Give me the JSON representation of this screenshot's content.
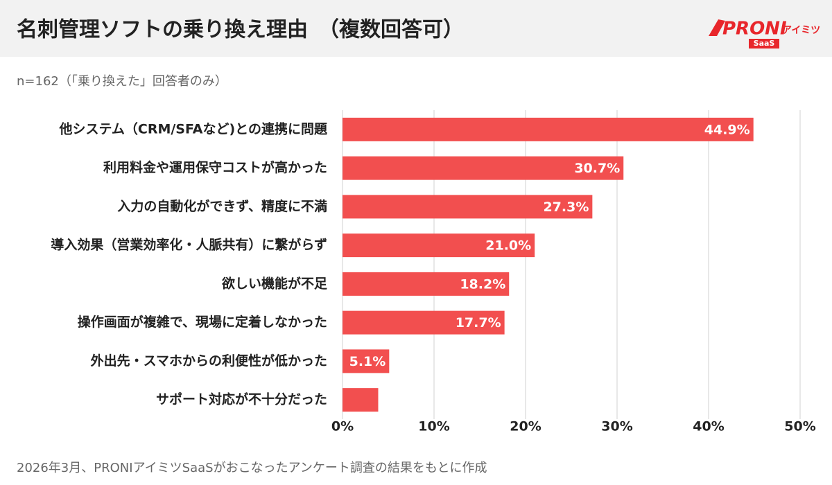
{
  "chart_data": {
    "type": "barh",
    "title": "名刺管理ソフトの乗り換え理由　（複数回答可）",
    "subtitle": "n=162（「乗り換えた」回答者のみ）",
    "note": "2026年3月、PRONIアイミツSaaSがおこなったアンケート調査の結果をもとに作成",
    "categories": [
      "他システム（CRM/SFAなど)との連携に問題",
      "利用料金や運用保守コストが高かった",
      "入力の自動化ができず、精度に不満",
      "導入効果（営業効率化・人脈共有）に繋がらず",
      "欲しい機能が不足",
      "操作画面が複雑で、現場に定着しなかった",
      "外出先・スマホからの利便性が低かった",
      "サポート対応が不十分だった"
    ],
    "values": [
      44.9,
      30.7,
      27.3,
      21.0,
      18.2,
      17.7,
      5.1,
      3.9
    ],
    "value_labels": [
      "44.9%",
      "30.7%",
      "27.3%",
      "21.0%",
      "18.2%",
      "17.7%",
      "5.1%",
      null
    ],
    "color": "#f24f4f",
    "xlim": [
      0,
      50
    ],
    "xticks": [
      {
        "value": 0,
        "label": "0%"
      },
      {
        "value": 10,
        "label": "10%"
      },
      {
        "value": 20,
        "label": "20%"
      },
      {
        "value": 30,
        "label": "30%"
      },
      {
        "value": 40,
        "label": "40%"
      },
      {
        "value": 50,
        "label": "50%"
      }
    ],
    "grid": true
  },
  "logo": {
    "brand": "PRONI",
    "sub": "アイミツ",
    "tag": "SaaS"
  }
}
